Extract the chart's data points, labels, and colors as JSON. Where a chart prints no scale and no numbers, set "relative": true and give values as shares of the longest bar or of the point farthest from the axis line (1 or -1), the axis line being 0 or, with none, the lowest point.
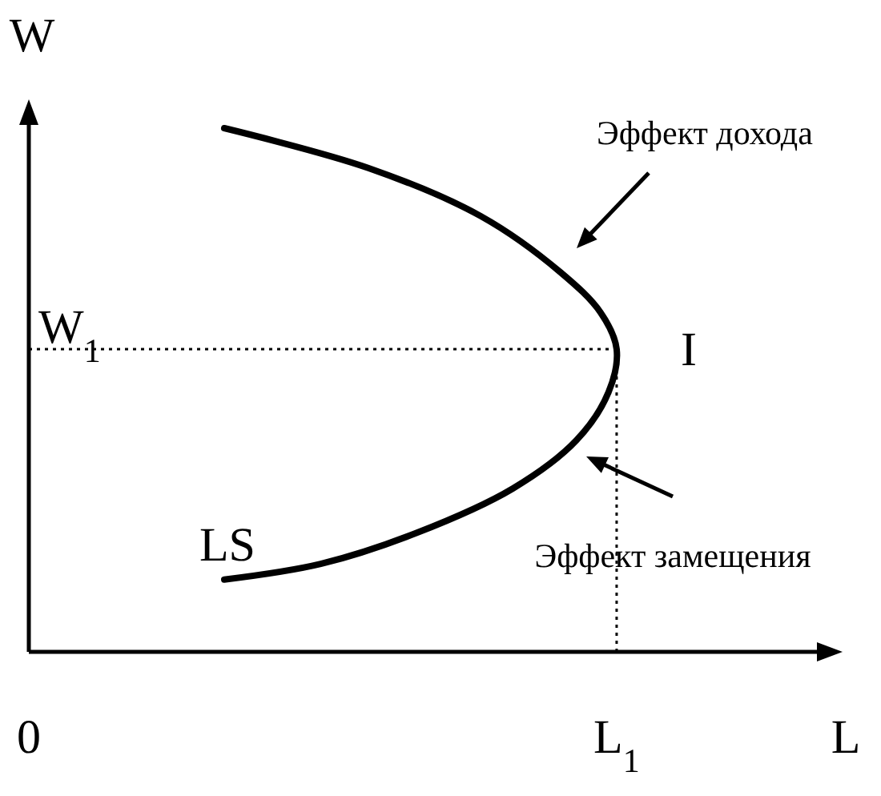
{
  "chart_data": {
    "type": "line",
    "relative": true,
    "xlabel": "L",
    "ylabel": "W",
    "xlim": [
      0,
      1
    ],
    "xticks": [
      {
        "value": 0,
        "label": "0"
      },
      {
        "value": 0.731,
        "label": "L$_{1}$"
      }
    ],
    "series": [
      {
        "color": "#000000",
        "x": [
          0.243,
          0.422,
          0.562,
          0.661,
          0.711,
          0.731,
          0.721,
          0.681,
          0.602,
          0.482,
          0.363,
          0.243
        ],
        "values": [
          1,
          0.924,
          0.832,
          0.725,
          0.648,
          0.578,
          0.496,
          0.404,
          0.312,
          0.227,
          0.168,
          0.138
        ]
      }
    ],
    "ref_lines": [
      {
        "axis": "y",
        "value": 0.578,
        "label": "W$_{1}$",
        "line_style": "dotted",
        "color": "#000000"
      },
      {
        "axis": "x",
        "value": 0.731,
        "line_style": "dotted",
        "color": "#000000"
      }
    ],
    "annotations": [
      "Эффект дохода",
      "Эффект замещения",
      {
        "text": "I",
        "x": 0.731,
        "y": 0.578
      },
      {
        "text": "LS",
        "x": 0.243,
        "y": 0.138
      }
    ],
    "marker": "none",
    "line_style": "solid"
  }
}
